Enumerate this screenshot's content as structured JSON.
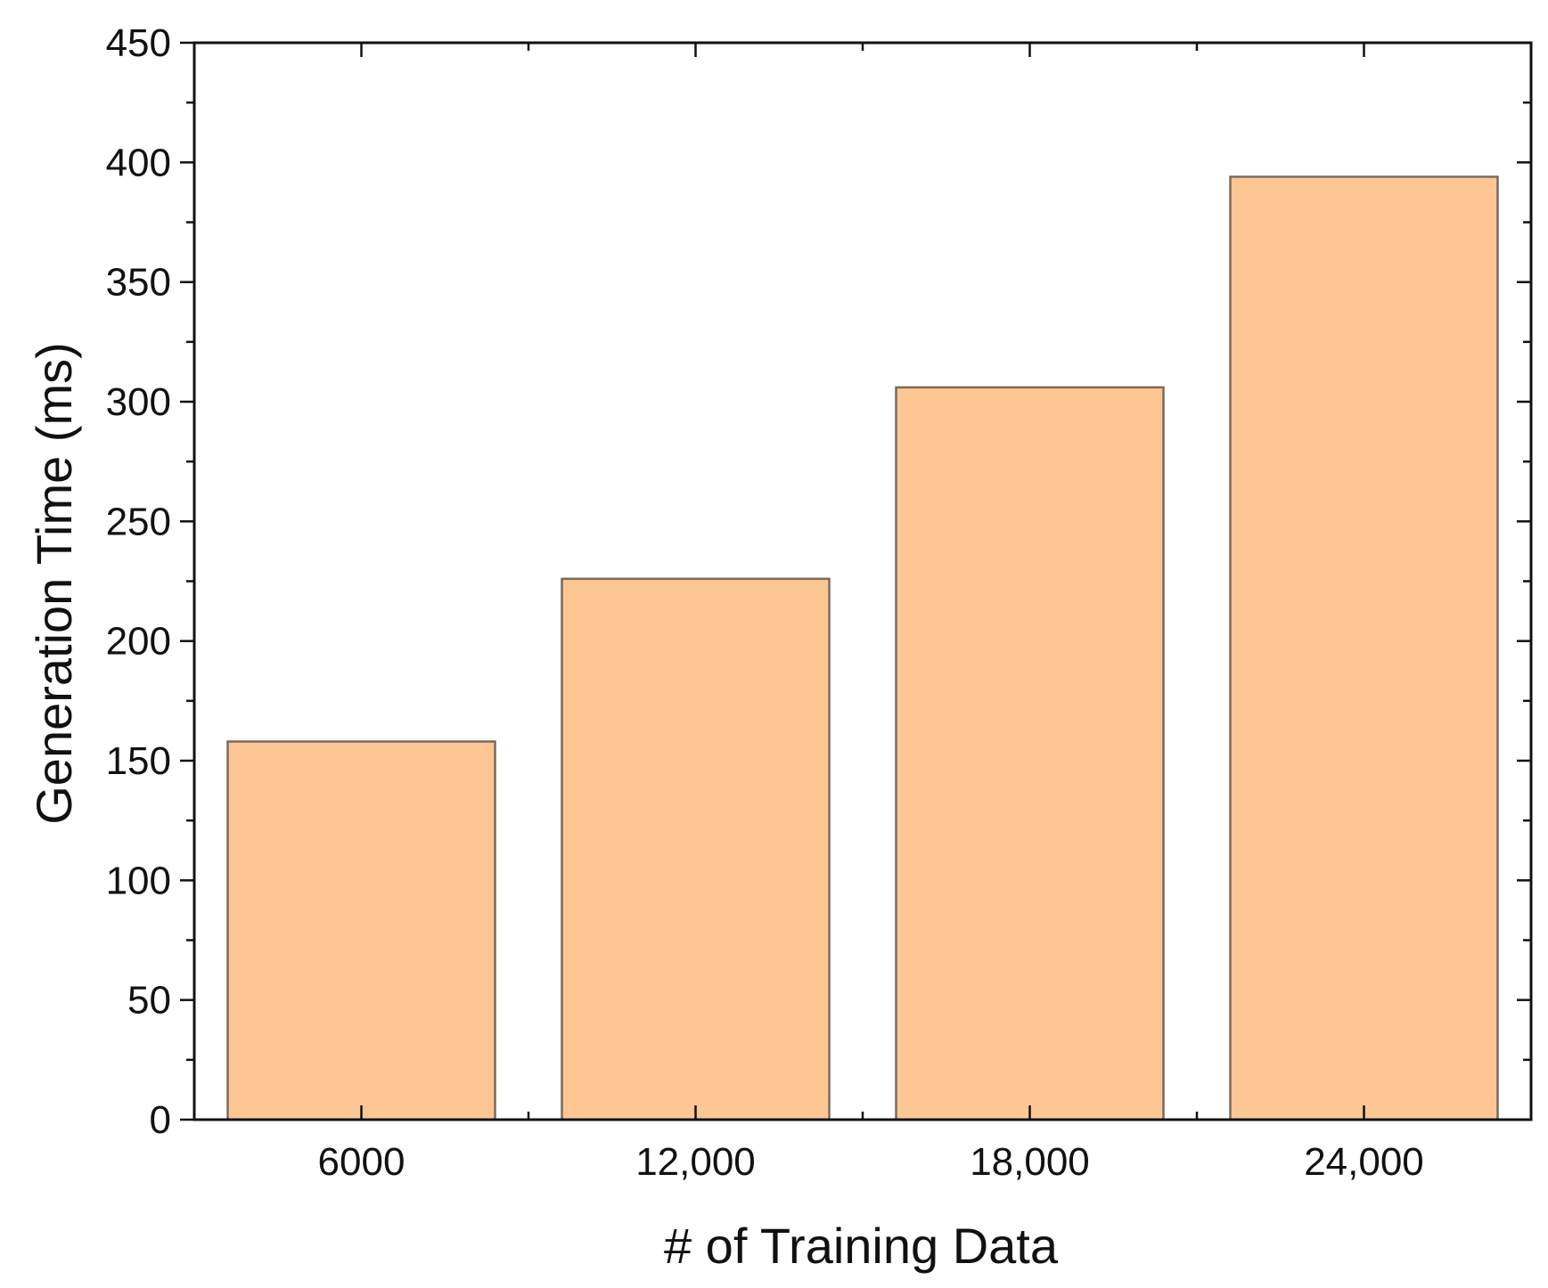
{
  "chart_data": {
    "type": "bar",
    "categories": [
      "6000",
      "12,000",
      "18,000",
      "24,000"
    ],
    "values": [
      158,
      226,
      306,
      394
    ],
    "title": "",
    "xlabel": "# of Training Data",
    "ylabel": "Generation Time (ms)",
    "ylim": [
      0,
      450
    ],
    "yticks": [
      0,
      50,
      100,
      150,
      200,
      250,
      300,
      350,
      400,
      450
    ],
    "grid": false,
    "legend": "none",
    "colors": {
      "bar_fill": "#FDC794",
      "bar_stroke": "#7A6A5C",
      "axis": "#111111"
    }
  }
}
